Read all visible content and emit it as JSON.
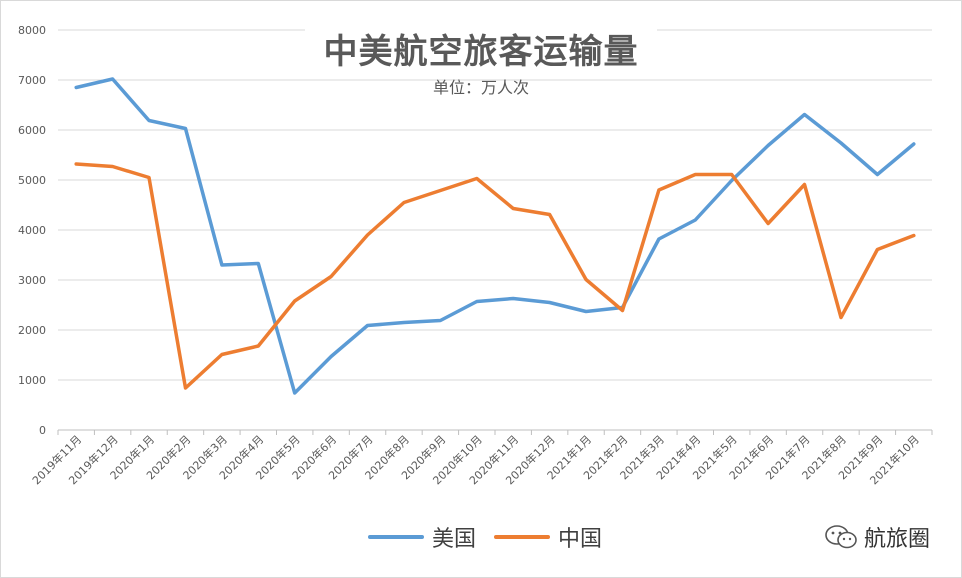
{
  "chart_data": {
    "type": "line",
    "title": "中美航空旅客运输量",
    "subtitle": "单位：万人次",
    "categories": [
      "2019年11月",
      "2019年12月",
      "2020年1月",
      "2020年2月",
      "2020年3月",
      "2020年4月",
      "2020年5月",
      "2020年6月",
      "2020年7月",
      "2020年8月",
      "2020年9月",
      "2020年10月",
      "2020年11月",
      "2020年12月",
      "2021年1月",
      "2021年2月",
      "2021年3月",
      "2021年4月",
      "2021年5月",
      "2021年6月",
      "2021年7月",
      "2021年8月",
      "2021年9月",
      "2021年10月"
    ],
    "series": [
      {
        "name": "美国",
        "color": "#5b9bd5",
        "values": [
          6850,
          7020,
          6190,
          6030,
          3300,
          3330,
          740,
          1470,
          2090,
          2150,
          2190,
          2570,
          2630,
          2550,
          2370,
          2450,
          3820,
          4200,
          4990,
          5690,
          6310,
          5740,
          5110,
          5720
        ]
      },
      {
        "name": "中国",
        "color": "#ed7d31",
        "values": [
          5320,
          5270,
          5050,
          840,
          1510,
          1680,
          2580,
          3070,
          3900,
          4550,
          4790,
          5030,
          4430,
          4310,
          3010,
          2390,
          4800,
          5110,
          5110,
          4130,
          4910,
          2250,
          3610,
          3890
        ]
      }
    ],
    "yticks": [
      "0",
      "1000",
      "2000",
      "3000",
      "4000",
      "5000",
      "6000",
      "7000",
      "8000"
    ],
    "ylim": [
      0,
      8000
    ],
    "xlabel": "",
    "ylabel": "",
    "grid": true,
    "legend_position": "bottom"
  },
  "watermark": {
    "icon": "wechat-icon",
    "text": "航旅圈"
  }
}
